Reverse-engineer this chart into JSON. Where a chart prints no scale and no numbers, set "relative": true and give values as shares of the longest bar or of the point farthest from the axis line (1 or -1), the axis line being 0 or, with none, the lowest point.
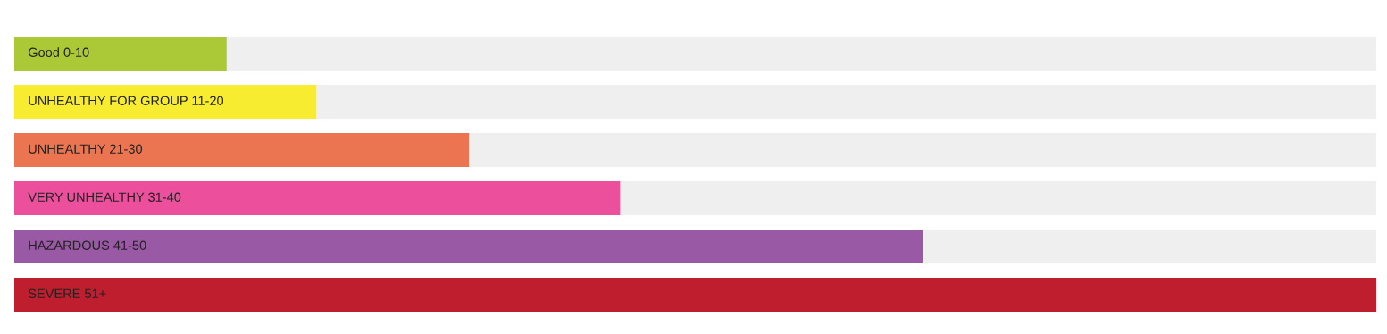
{
  "chart_data": {
    "type": "bar",
    "orientation": "horizontal",
    "stacked": true,
    "relative": true,
    "categories": [
      "Good 0-10",
      "UNHEALTHY FOR GROUP 11-20",
      "UNHEALTHY 21-30",
      "VERY UNHEALTHY 31-40",
      "HAZARDOUS 41-50",
      "SEVERE 51+"
    ],
    "series": [
      {
        "colors": [
          "#abc937",
          "#f8ec31",
          "#eb7551",
          "#ec4f9c",
          "#9959a5",
          "#be1e2d"
        ],
        "values": [
          0.156,
          0.222,
          0.334,
          0.445,
          0.667,
          1.0
        ]
      },
      {
        "color": "#efefef",
        "values": [
          0.844,
          0.778,
          0.666,
          0.555,
          0.333,
          0.0
        ]
      }
    ],
    "legend": false,
    "tick_labels": false
  }
}
